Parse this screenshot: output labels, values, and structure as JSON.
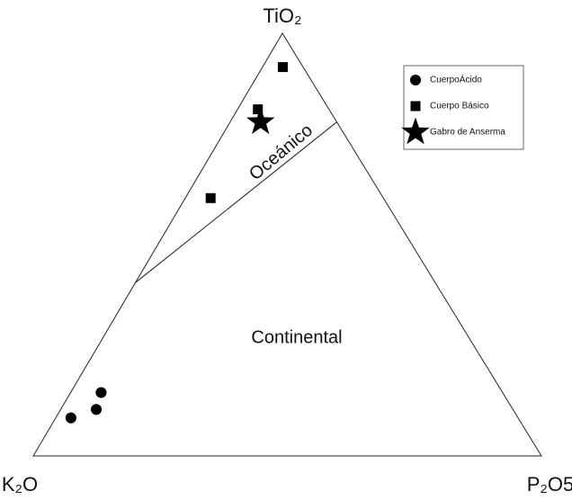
{
  "chart_data": {
    "type": "ternary",
    "axes": [
      "TiO₂",
      "K₂O",
      "P₂O5"
    ],
    "regions": [
      "Oceánico",
      "Continental"
    ],
    "boundary": [
      [
        41,
        59,
        0
      ],
      [
        79,
        0,
        21
      ]
    ],
    "series": [
      {
        "name": "CuerpoÁcido",
        "marker": "circle",
        "color": "#000000",
        "values": [
          [
            15,
            79,
            6
          ],
          [
            11,
            82,
            7
          ],
          [
            9,
            88,
            3
          ]
        ]
      },
      {
        "name": "Cuerpo Básico",
        "marker": "square",
        "color": "#000000",
        "values": [
          [
            92,
            4,
            4
          ],
          [
            82,
            14,
            4
          ],
          [
            61,
            34,
            5
          ]
        ]
      },
      {
        "name": "Gabro de Anserma",
        "marker": "star",
        "color": "#000000",
        "values": [
          [
            79,
            15,
            6
          ]
        ]
      }
    ],
    "legend": "top-right"
  }
}
